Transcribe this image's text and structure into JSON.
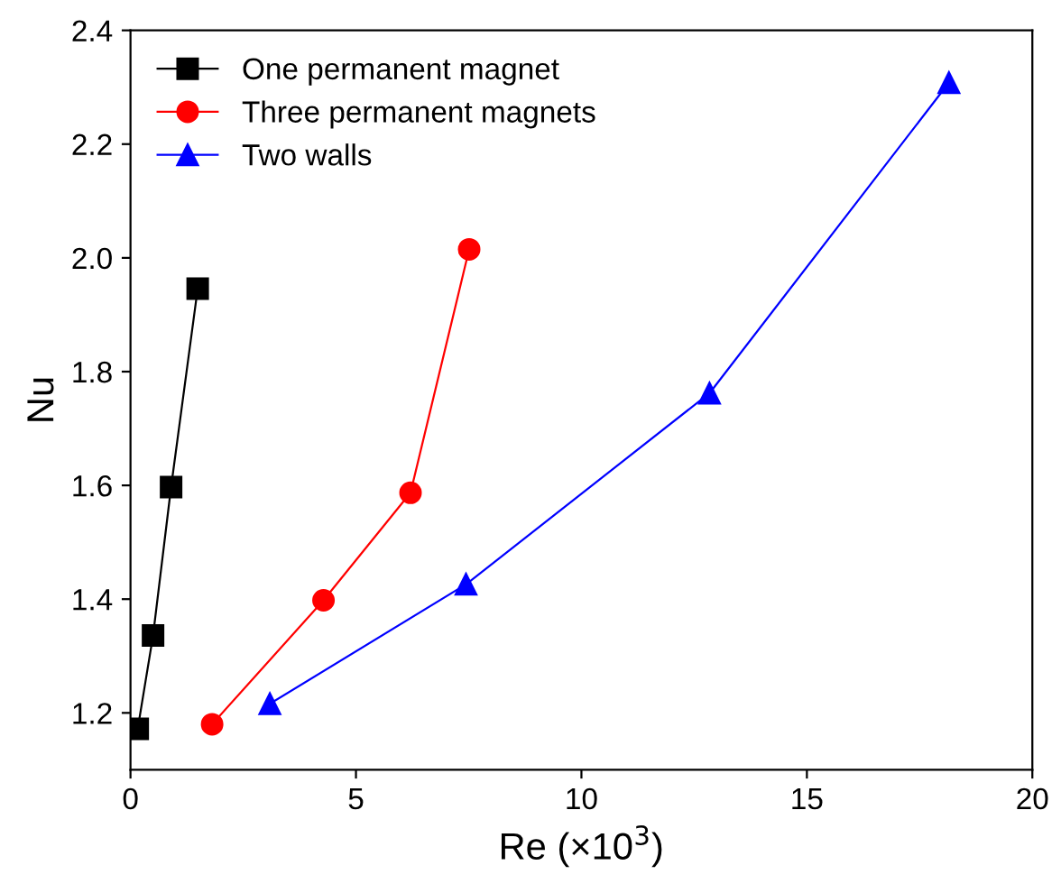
{
  "chart_data": {
    "type": "line",
    "xlabel": "Re (×10$^{3}$)",
    "ylabel": "Nu",
    "xlim": [
      0,
      20
    ],
    "ylim": [
      1.1,
      2.4
    ],
    "xticks": [
      0,
      5,
      10,
      15,
      20
    ],
    "yticks": [
      {
        "value": 1.2,
        "label": "1.2"
      },
      {
        "value": 1.4,
        "label": "1.4"
      },
      {
        "value": 1.6,
        "label": "1.6"
      },
      {
        "value": 1.8,
        "label": "1.8"
      },
      {
        "value": 2.0,
        "label": "2.0"
      },
      {
        "value": 2.2,
        "label": "2.2"
      },
      {
        "value": 2.4,
        "label": "2.4"
      }
    ],
    "grid": false,
    "legend": "top left",
    "line_style": "solid",
    "series": [
      {
        "name": "One permanent magnet",
        "color": "#000000",
        "marker": "square",
        "x": [
          0.16,
          0.5,
          0.9,
          1.49
        ],
        "values": [
          1.172,
          1.336,
          1.597,
          1.946
        ]
      },
      {
        "name": "Three permanent magnets",
        "color": "#ff0000",
        "marker": "circle",
        "x": [
          1.81,
          4.28,
          6.21,
          7.51
        ],
        "values": [
          1.18,
          1.398,
          1.587,
          2.015
        ]
      },
      {
        "name": "Two walls",
        "color": "#0000ff",
        "marker": "triangle",
        "x": [
          3.09,
          7.44,
          12.84,
          18.15
        ],
        "values": [
          1.216,
          1.426,
          1.762,
          2.308
        ]
      }
    ]
  }
}
